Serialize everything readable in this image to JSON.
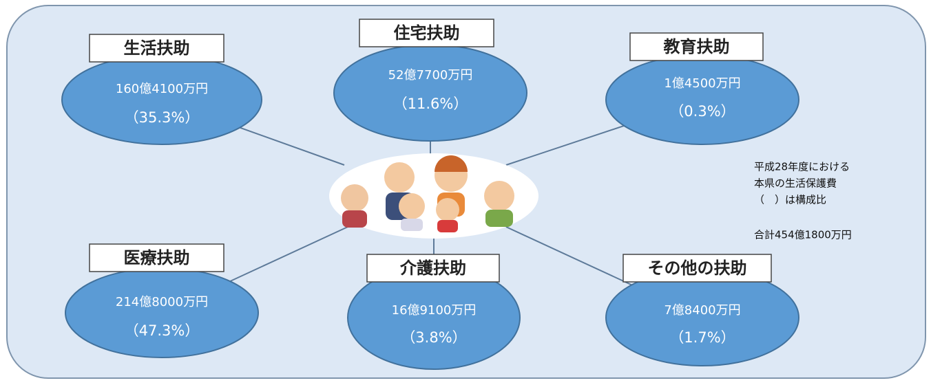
{
  "nodes": [
    {
      "label": "生活扶助",
      "amount": "160億4100万円",
      "share": "（35.3%）"
    },
    {
      "label": "住宅扶助",
      "amount": "52億7700万円",
      "share": "（11.6%）"
    },
    {
      "label": "教育扶助",
      "amount": "1億4500万円",
      "share": "（0.3%）"
    },
    {
      "label": "医療扶助",
      "amount": "214億8000万円",
      "share": "（47.3%）"
    },
    {
      "label": "介護扶助",
      "amount": "16億9100万円",
      "share": "（3.8%）"
    },
    {
      "label": "その他の扶助",
      "amount": "7億8400万円",
      "share": "（1.7%）"
    }
  ],
  "note": {
    "lines": [
      "平成28年度における",
      "本県の生活保護費",
      "（　）は構成比"
    ],
    "total": "合計454億1800万円"
  }
}
